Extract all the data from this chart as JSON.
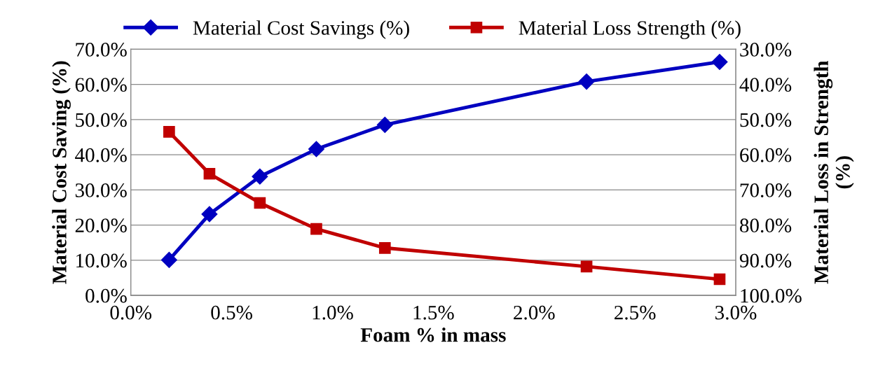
{
  "chart_data": {
    "type": "line",
    "xlabel": "Foam % in mass",
    "ylabel": "Material Cost Saving (%)",
    "y2label": "Material Loss in Strength\n(%)",
    "x": [
      0.19,
      0.39,
      0.64,
      0.92,
      1.26,
      2.26,
      2.92
    ],
    "series": [
      {
        "name": "Material Cost Savings (%)",
        "color": "#0000c0",
        "marker": "diamond",
        "values": [
          10.1,
          23.1,
          33.8,
          41.6,
          48.5,
          60.8,
          66.4
        ]
      },
      {
        "name": "Material Loss Strength (%)",
        "color": "#c00000",
        "marker": "square",
        "axis": "y2",
        "values": [
          53.5,
          65.4,
          73.7,
          81.1,
          86.5,
          91.8,
          95.4
        ]
      }
    ],
    "xlim": [
      0,
      3
    ],
    "xticks": [
      {
        "value": 0,
        "label": "0.0%"
      },
      {
        "value": 0.5,
        "label": "0.5%"
      },
      {
        "value": 1,
        "label": "1.0%"
      },
      {
        "value": 1.5,
        "label": "1.5%"
      },
      {
        "value": 2,
        "label": "2.0%"
      },
      {
        "value": 2.5,
        "label": "2.5%"
      },
      {
        "value": 3,
        "label": "3.0%"
      }
    ],
    "ylim": [
      0,
      70
    ],
    "yticks": [
      {
        "value": 0,
        "label": "0.0%"
      },
      {
        "value": 10,
        "label": "10.0%"
      },
      {
        "value": 20,
        "label": "20.0%"
      },
      {
        "value": 30,
        "label": "30.0%"
      },
      {
        "value": 40,
        "label": "40.0%"
      },
      {
        "value": 50,
        "label": "50.0%"
      },
      {
        "value": 60,
        "label": "60.0%"
      },
      {
        "value": 70,
        "label": "70.0%"
      }
    ],
    "y2lim": [
      100,
      30
    ],
    "y2ticks": [
      {
        "value": 30,
        "label": "30.0%"
      },
      {
        "value": 40,
        "label": "40.0%"
      },
      {
        "value": 50,
        "label": "50.0%"
      },
      {
        "value": 60,
        "label": "60.0%"
      },
      {
        "value": 70,
        "label": "70.0%"
      },
      {
        "value": 80,
        "label": "80.0%"
      },
      {
        "value": 90,
        "label": "90.0%"
      },
      {
        "value": 100,
        "label": "100.0%"
      }
    ],
    "grid": "y",
    "legend": "top",
    "line_style": "solid"
  }
}
